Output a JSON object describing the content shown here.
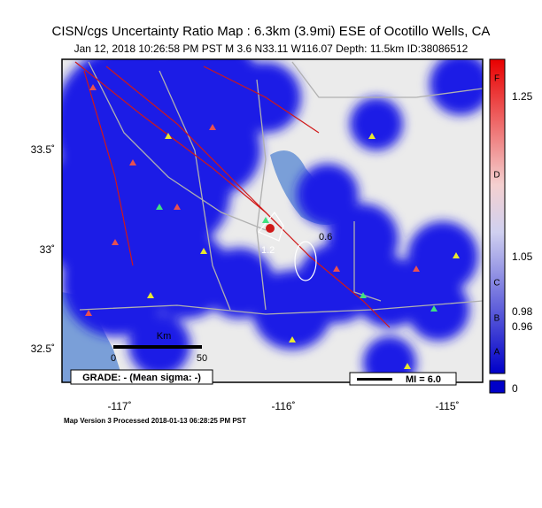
{
  "header": {
    "title": "CISN/cgs Uncertainty Ratio Map : 6.3km (3.9mi) ESE of Ocotillo Wells, CA",
    "subtitle": "Jan 12, 2018 10:26:58 PM PST   M 3.6   N33.11 W116.07   Depth: 11.5km   ID:38086512"
  },
  "map": {
    "lat_labels": [
      "33.5˚",
      "33˚",
      "32.5˚"
    ],
    "lon_labels": [
      "-117˚",
      "-116˚",
      "-115˚"
    ],
    "contour_labels": [
      "0.6",
      "1.2"
    ],
    "scale_unit": "Km",
    "scale_labels": [
      "0",
      "50"
    ],
    "grade": "GRADE: - (Mean sigma: -)",
    "mi": "MI = 6.0"
  },
  "colorbar": {
    "letters": [
      "F",
      "D",
      "C",
      "B",
      "A"
    ],
    "values": [
      "1.25",
      "1.05",
      "0.98",
      "0.96",
      "0"
    ]
  },
  "footer": "Map Version 3 Processed 2018-01-13 06:28:25 PM PST"
}
